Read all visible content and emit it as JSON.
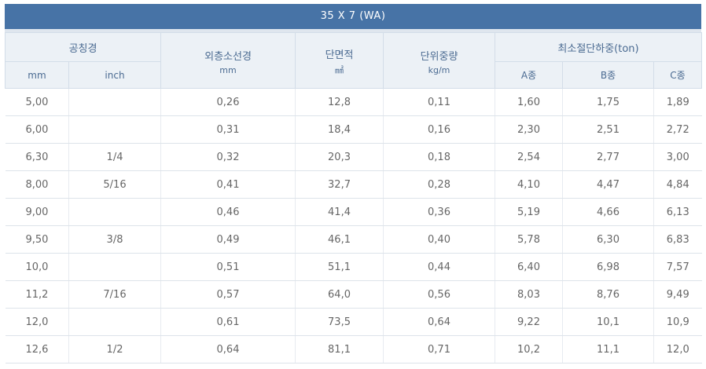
{
  "title": "35 X 7 (WA)",
  "headers": {
    "nominal_diameter": "공칭경",
    "nominal_mm": "mm",
    "nominal_inch": "inch",
    "outer_wire_diameter": "외층소선경",
    "outer_wire_unit": "mm",
    "cross_section": "단면적",
    "cross_section_unit": "㎟",
    "unit_weight": "단위중량",
    "unit_weight_unit": "kg/m",
    "min_breaking_load": "최소절단하중(ton)",
    "grade_a": "A종",
    "grade_b": "B종",
    "grade_c": "C종"
  },
  "rows": [
    {
      "mm": "5,00",
      "inch": "",
      "wire": "0,26",
      "area": "12,8",
      "weight": "0,11",
      "a": "1,60",
      "b": "1,75",
      "c": "1,89"
    },
    {
      "mm": "6,00",
      "inch": "",
      "wire": "0,31",
      "area": "18,4",
      "weight": "0,16",
      "a": "2,30",
      "b": "2,51",
      "c": "2,72"
    },
    {
      "mm": "6,30",
      "inch": "1/4",
      "wire": "0,32",
      "area": "20,3",
      "weight": "0,18",
      "a": "2,54",
      "b": "2,77",
      "c": "3,00"
    },
    {
      "mm": "8,00",
      "inch": "5/16",
      "wire": "0,41",
      "area": "32,7",
      "weight": "0,28",
      "a": "4,10",
      "b": "4,47",
      "c": "4,84"
    },
    {
      "mm": "9,00",
      "inch": "",
      "wire": "0,46",
      "area": "41,4",
      "weight": "0,36",
      "a": "5,19",
      "b": "4,66",
      "c": "6,13"
    },
    {
      "mm": "9,50",
      "inch": "3/8",
      "wire": "0,49",
      "area": "46,1",
      "weight": "0,40",
      "a": "5,78",
      "b": "6,30",
      "c": "6,83"
    },
    {
      "mm": "10,0",
      "inch": "",
      "wire": "0,51",
      "area": "51,1",
      "weight": "0,44",
      "a": "6,40",
      "b": "6,98",
      "c": "7,57"
    },
    {
      "mm": "11,2",
      "inch": "7/16",
      "wire": "0,57",
      "area": "64,0",
      "weight": "0,56",
      "a": "8,03",
      "b": "8,76",
      "c": "9,49"
    },
    {
      "mm": "12,0",
      "inch": "",
      "wire": "0,61",
      "area": "73,5",
      "weight": "0,64",
      "a": "9,22",
      "b": "10,1",
      "c": "10,9"
    },
    {
      "mm": "12,6",
      "inch": "1/2",
      "wire": "0,64",
      "area": "81,1",
      "weight": "0,71",
      "a": "10,2",
      "b": "11,1",
      "c": "12,0"
    }
  ]
}
